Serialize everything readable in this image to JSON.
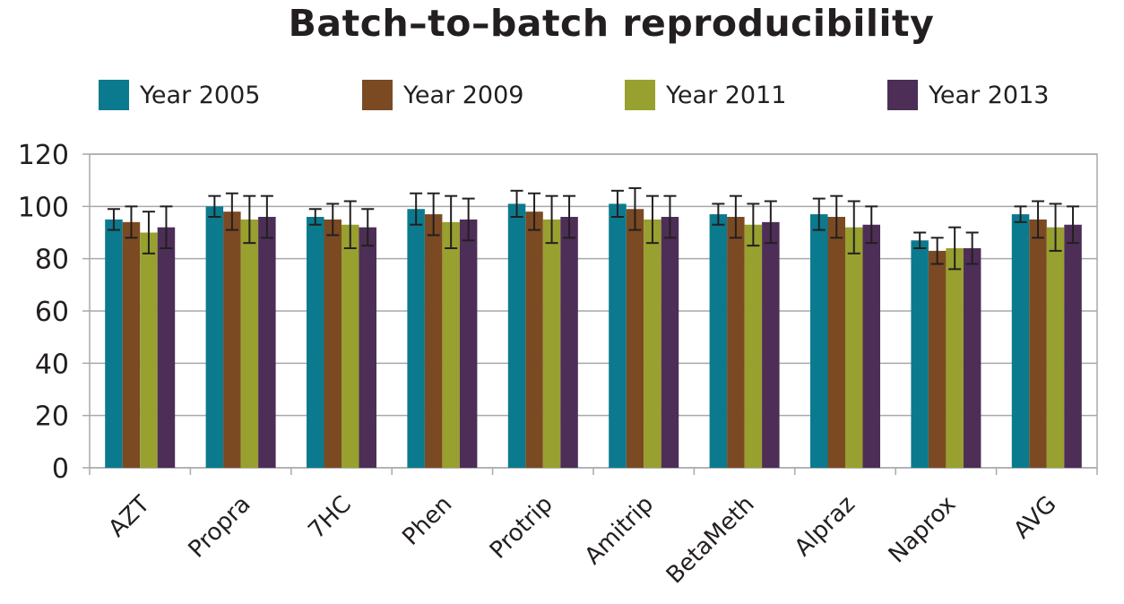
{
  "chart_data": {
    "type": "bar",
    "title": "Batch–to–batch reproducibility",
    "xlabel": "",
    "ylabel": "",
    "ylim": [
      0,
      120
    ],
    "yticks": [
      0,
      20,
      40,
      60,
      80,
      100,
      120
    ],
    "grid": true,
    "legend_position": "top",
    "categories": [
      "AZT",
      "Propra",
      "7HC",
      "Phen",
      "Protrip",
      "Amitrip",
      "BetaMeth",
      "Alpraz",
      "Naprox",
      "AVG"
    ],
    "series": [
      {
        "name": "Year 2005",
        "color": "#0b7a8e",
        "values": [
          95,
          100,
          96,
          99,
          101,
          101,
          97,
          97,
          87,
          97
        ],
        "errors": [
          4,
          4,
          3,
          6,
          5,
          5,
          4,
          6,
          3,
          3
        ]
      },
      {
        "name": "Year 2009",
        "color": "#7b4a23",
        "values": [
          94,
          98,
          95,
          97,
          98,
          99,
          96,
          96,
          83,
          95
        ],
        "errors": [
          6,
          7,
          6,
          8,
          7,
          8,
          8,
          8,
          5,
          7
        ]
      },
      {
        "name": "Year 2011",
        "color": "#98a02f",
        "values": [
          90,
          95,
          93,
          94,
          95,
          95,
          93,
          92,
          84,
          92
        ],
        "errors": [
          8,
          9,
          9,
          10,
          9,
          9,
          8,
          10,
          8,
          9
        ]
      },
      {
        "name": "Year 2013",
        "color": "#4d2e57",
        "values": [
          92,
          96,
          92,
          95,
          96,
          96,
          94,
          93,
          84,
          93
        ],
        "errors": [
          8,
          8,
          7,
          8,
          8,
          8,
          8,
          7,
          6,
          7
        ]
      }
    ]
  }
}
